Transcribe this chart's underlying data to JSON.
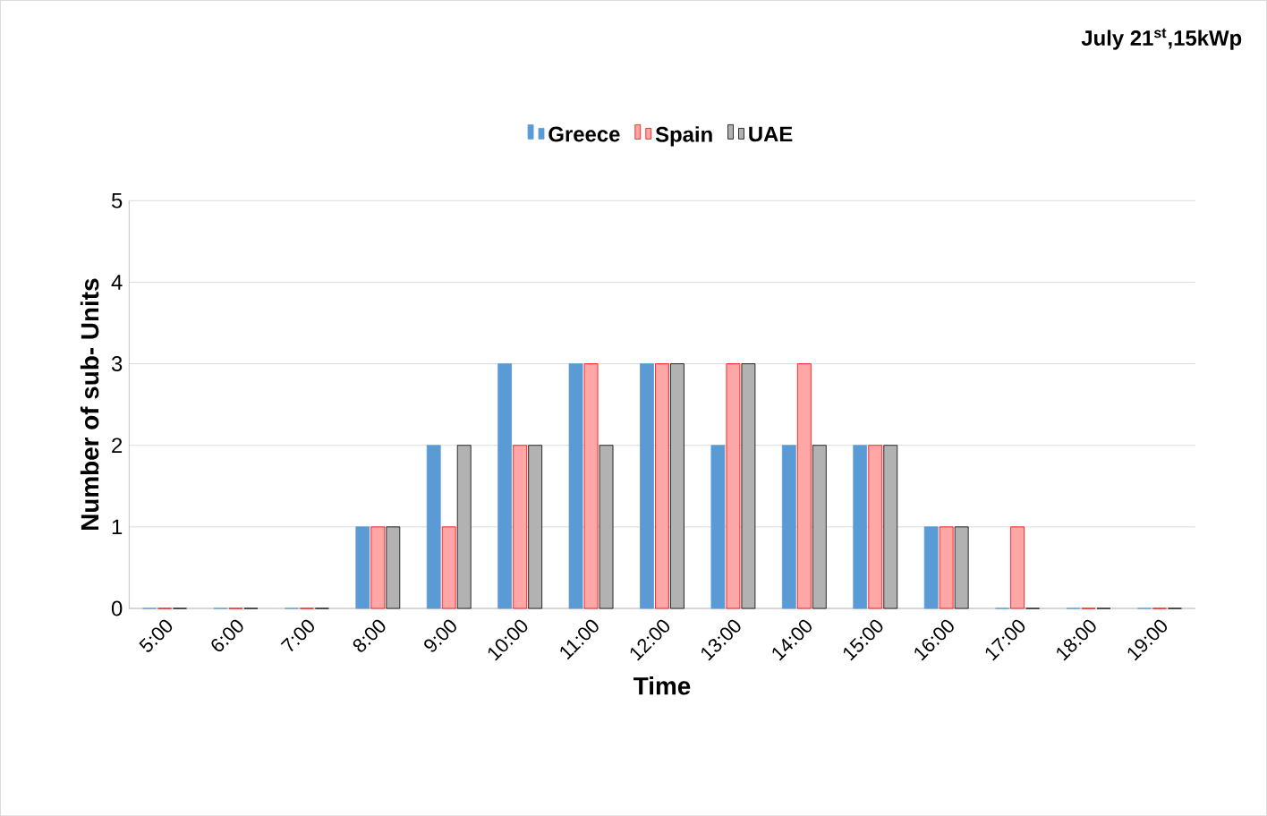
{
  "chart_data": {
    "type": "bar",
    "title": "July 21$^{st}$,15kWp",
    "xlabel": "Time",
    "ylabel": "Number of sub- Units",
    "categories": [
      "5:00",
      "6:00",
      "7:00",
      "8:00",
      "9:00",
      "10:00",
      "11:00",
      "12:00",
      "13:00",
      "14:00",
      "15:00",
      "16:00",
      "17:00",
      "18:00",
      "19:00"
    ],
    "series": [
      {
        "name": "Greece",
        "color": "#5b9bd5",
        "values": [
          0,
          0,
          0,
          1,
          2,
          3,
          3,
          3,
          2,
          2,
          2,
          1,
          0,
          0,
          0
        ]
      },
      {
        "name": "Spain",
        "color": "#ff0000",
        "values": [
          0,
          0,
          0,
          1,
          1,
          2,
          3,
          3,
          3,
          3,
          2,
          1,
          1,
          0,
          0
        ]
      },
      {
        "name": "UAE",
        "color": "#000000",
        "values": [
          0,
          0,
          0,
          1,
          2,
          2,
          2,
          3,
          3,
          2,
          2,
          1,
          0,
          0,
          0
        ]
      }
    ],
    "ylim": [
      0,
      5
    ],
    "yticks": [
      0,
      1,
      2,
      3,
      4,
      5
    ],
    "grid": "y",
    "legend": "top"
  }
}
